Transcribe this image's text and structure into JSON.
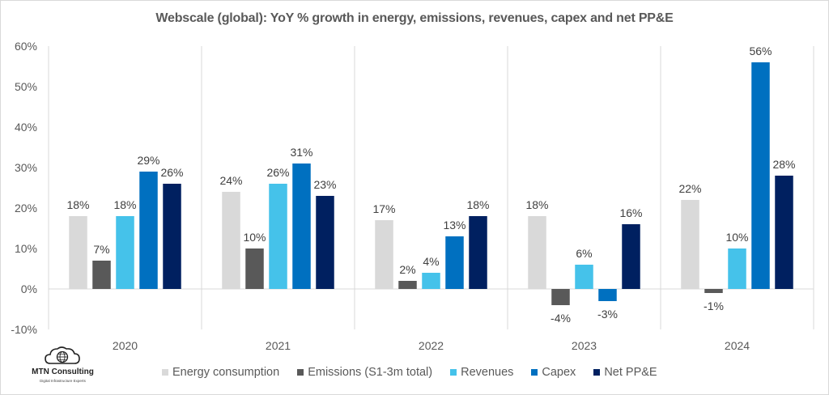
{
  "chart_data": {
    "type": "bar",
    "title": "Webscale (global): YoY % growth in energy, emissions, revenues, capex and net PP&E",
    "xlabel": "",
    "ylabel": "",
    "ylim": [
      -10,
      60
    ],
    "yticks": [
      -10,
      0,
      10,
      20,
      30,
      40,
      50,
      60
    ],
    "ytick_labels": [
      "-10%",
      "0%",
      "10%",
      "20%",
      "30%",
      "40%",
      "50%",
      "60%"
    ],
    "value_format": "percent",
    "grid": false,
    "category_separators": true,
    "legend_position": "bottom",
    "categories": [
      "2020",
      "2021",
      "2022",
      "2023",
      "2024"
    ],
    "series": [
      {
        "name": "Energy consumption",
        "color": "#D9D9D9",
        "values": [
          18,
          24,
          17,
          18,
          22
        ],
        "labels": [
          "18%",
          "24%",
          "17%",
          "18%",
          "22%"
        ]
      },
      {
        "name": "Emissions (S1-3m total)",
        "color": "#595959",
        "values": [
          7,
          10,
          2,
          -4,
          -1
        ],
        "labels": [
          "7%",
          "10%",
          "2%",
          "-4%",
          "-1%"
        ]
      },
      {
        "name": "Revenues",
        "color": "#45C2EA",
        "values": [
          18,
          26,
          4,
          6,
          10
        ],
        "labels": [
          "18%",
          "26%",
          "4%",
          "6%",
          "10%"
        ]
      },
      {
        "name": "Capex",
        "color": "#0070C0",
        "values": [
          29,
          31,
          13,
          -3,
          56
        ],
        "labels": [
          "29%",
          "31%",
          "13%",
          "-3%",
          "56%"
        ]
      },
      {
        "name": "Net PP&E",
        "color": "#002060",
        "values": [
          26,
          23,
          18,
          16,
          28
        ],
        "labels": [
          "26%",
          "23%",
          "18%",
          "16%",
          "28%"
        ]
      }
    ]
  },
  "logo": {
    "name": "MTN Consulting",
    "tagline": "Digital Infrastructure Experts",
    "icon": "cloud-globe-icon"
  }
}
